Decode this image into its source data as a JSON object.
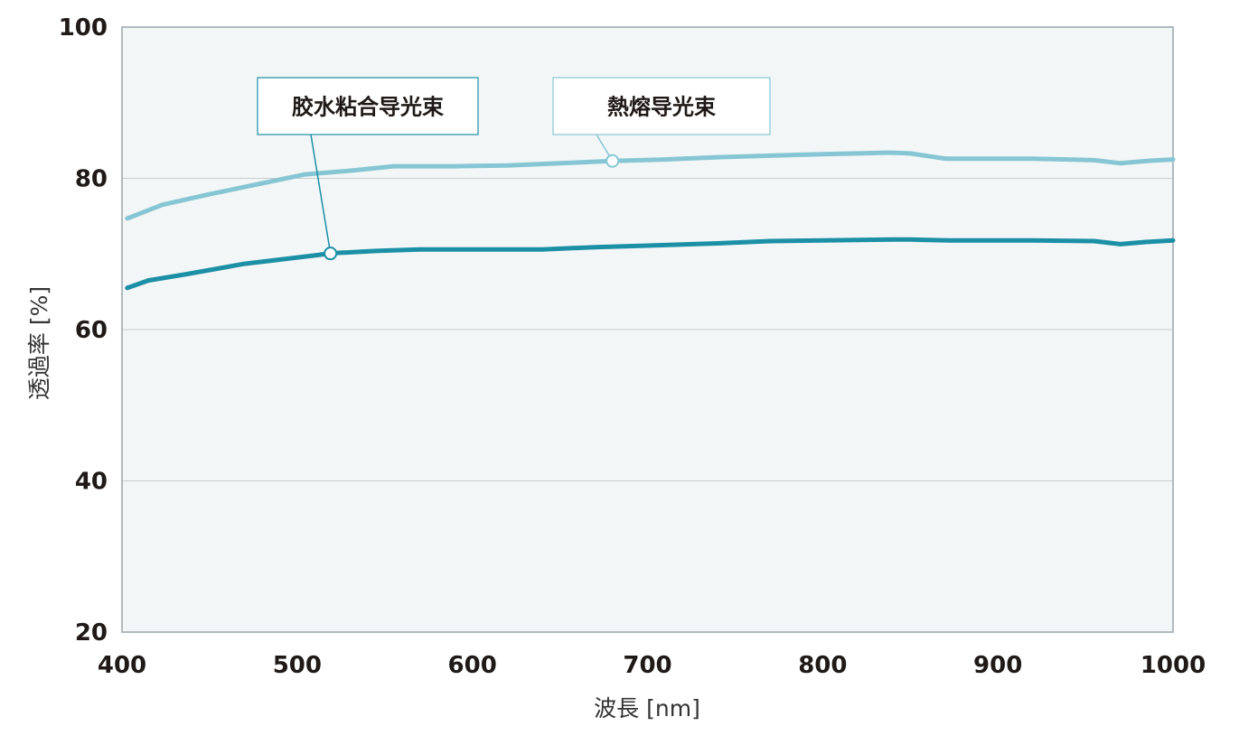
{
  "chart_data": {
    "type": "line",
    "title": "",
    "xlabel": "波長 [nm]",
    "ylabel": "透過率 [%]",
    "xlim": [
      400,
      1000
    ],
    "ylim": [
      20,
      100
    ],
    "x_ticks": [
      "400",
      "500",
      "600",
      "700",
      "800",
      "900",
      "1000"
    ],
    "y_ticks": [
      "20",
      "40",
      "60",
      "80",
      "100"
    ],
    "grid": "horizontal",
    "colors": {
      "plot_background": "#f3f6f6",
      "grid": "#c8cccc",
      "frame": "#9aa6ad"
    },
    "series": [
      {
        "name": "熱熔导光束",
        "color": "#86c6d4",
        "x": [
          403,
          423,
          450,
          475,
          504,
          530,
          555,
          590,
          620,
          650,
          680,
          710,
          740,
          770,
          800,
          820,
          838,
          850,
          870,
          900,
          920,
          940,
          955,
          970,
          985,
          1000
        ],
        "values": [
          74.7,
          76.5,
          77.9,
          79.1,
          80.5,
          81.0,
          81.6,
          81.6,
          81.7,
          82.0,
          82.3,
          82.5,
          82.8,
          83.0,
          83.2,
          83.3,
          83.4,
          83.3,
          82.6,
          82.6,
          82.6,
          82.5,
          82.4,
          82.0,
          82.3,
          82.5
        ],
        "legend_label": "熱熔导光束",
        "marker_x": 680
      },
      {
        "name": "胶水粘合导光束",
        "color": "#1b8fa6",
        "x": [
          403,
          415,
          436,
          470,
          510,
          520,
          545,
          570,
          600,
          640,
          670,
          700,
          740,
          770,
          800,
          840,
          850,
          872,
          900,
          920,
          955,
          970,
          985,
          1000
        ],
        "values": [
          65.5,
          66.5,
          67.3,
          68.7,
          69.8,
          70.1,
          70.4,
          70.6,
          70.6,
          70.6,
          70.9,
          71.1,
          71.4,
          71.7,
          71.8,
          71.9,
          71.9,
          71.8,
          71.8,
          71.8,
          71.7,
          71.3,
          71.6,
          71.8
        ],
        "legend_label": "胶水粘合导光束",
        "marker_x": 519
      }
    ]
  }
}
